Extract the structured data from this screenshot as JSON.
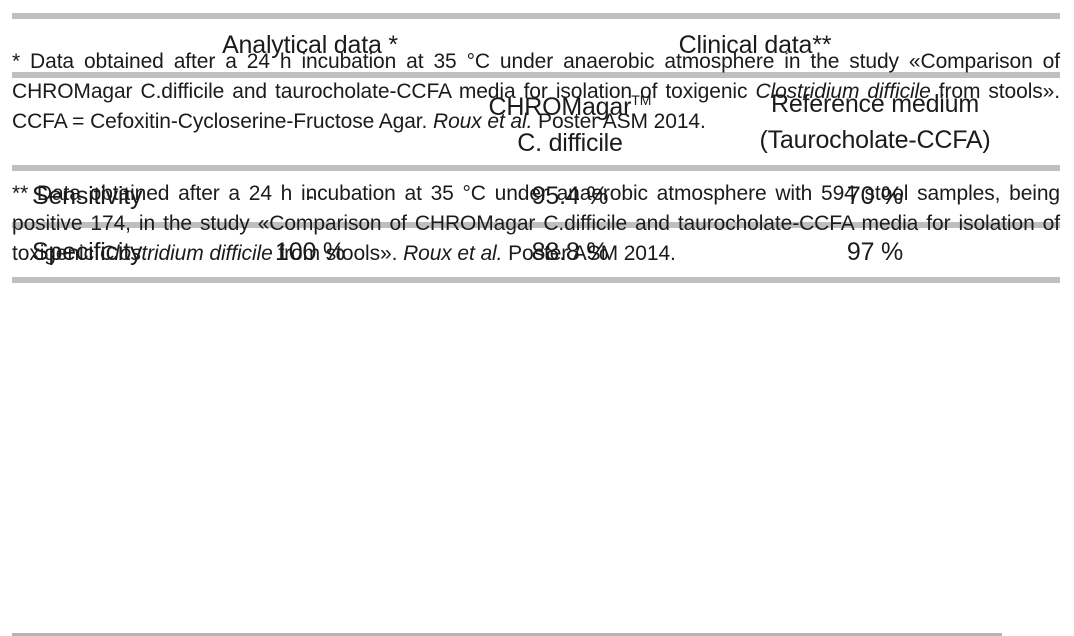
{
  "table": {
    "group_headers": [
      {
        "label": "Analytical data *"
      },
      {
        "label": "Clinical data**"
      }
    ],
    "col_headers": [
      {
        "line1": "CHROMagar",
        "sup": "TM",
        "line2": "C. difficile"
      },
      {
        "line1": "Reference medium",
        "line2": "(Taurocholate-CCFA)"
      }
    ],
    "rows": [
      {
        "label": "Sensitivity",
        "analytical": "-",
        "chromagar": "95.4 %",
        "reference": "70 %"
      },
      {
        "label": "Specificity",
        "analytical": "100 %",
        "chromagar": "88.8 %",
        "reference": "97 %"
      }
    ]
  },
  "footnotes": {
    "first": {
      "seg1": "* Data obtained after a 24 h incubation at 35 °C under anaerobic atmosphere in the study «Comparison of CHROMagar C.difficile and taurocholate-CCFA media for isolation of toxigenic ",
      "seg2_italic": "Clostridium difficile",
      "seg3": " from stools». CCFA = Cefoxitin-Cycloserine-Fructose Agar. ",
      "seg4_italic": "Roux et al.",
      "seg5": " Poster ASM 2014."
    },
    "second": {
      "seg1": "** Data obtained after a 24 h incubation at 35 °C under anaerobic atmosphere with 594 stool samples, being positive 174, in the study «Comparison of CHROMagar C.difficile and taurocholate-CCFA media for isolation of toxigenic ",
      "seg2_italic": "Clostridium difficile",
      "seg3": " from stools». ",
      "seg4_italic": "Roux et al.",
      "seg5": " Poster ASM 2014."
    }
  },
  "colors": {
    "rule": "#bfbfbf",
    "text": "#1b1b1b"
  }
}
